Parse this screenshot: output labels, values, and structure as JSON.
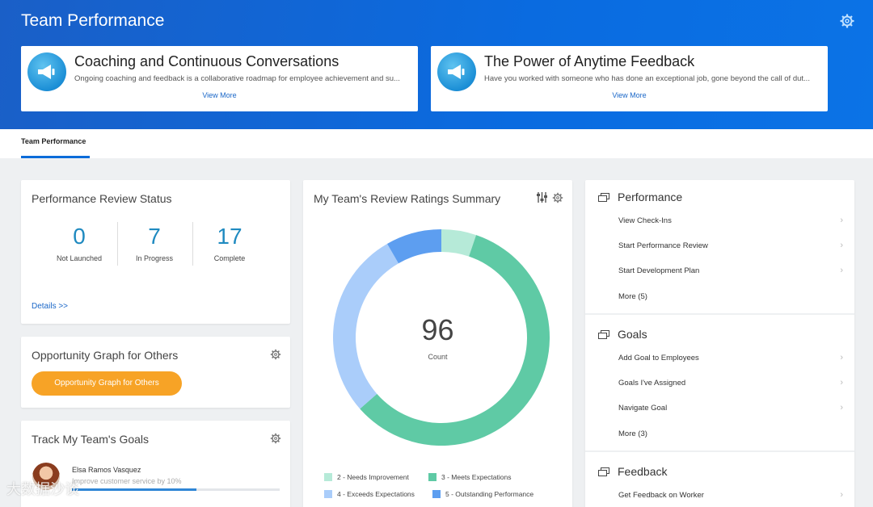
{
  "page": {
    "title": "Team Performance"
  },
  "announcements": [
    {
      "title": "Coaching and Continuous Conversations",
      "description": "Ongoing coaching and feedback is a collaborative roadmap for employee achievement and su...",
      "link": "View More"
    },
    {
      "title": "The Power of Anytime Feedback",
      "description": "Have you worked with someone who has done an exceptional job, gone beyond the call of dut...",
      "link": "View More"
    }
  ],
  "tabs": [
    {
      "label": "Team Performance",
      "active": true
    }
  ],
  "review_status": {
    "title": "Performance Review Status",
    "stats": [
      {
        "value": "0",
        "label": "Not Launched"
      },
      {
        "value": "7",
        "label": "In Progress"
      },
      {
        "value": "17",
        "label": "Complete"
      }
    ],
    "details_link": "Details >>"
  },
  "opportunity": {
    "title": "Opportunity Graph for Others",
    "button": "Opportunity Graph for Others"
  },
  "team_goals": {
    "title": "Track My Team's Goals",
    "employee": {
      "name": "Elsa Ramos Vasquez",
      "goal": "Improve customer service by 10%",
      "progress": 0.6
    }
  },
  "ratings": {
    "title": "My Team's Review Ratings Summary",
    "center_value": "96",
    "center_label": "Count"
  },
  "chart_data": {
    "type": "pie",
    "title": "My Team's Review Ratings Summary",
    "total": 96,
    "categories": [
      "2 - Needs Improvement",
      "3 - Meets Expectations",
      "4 - Exceeds Expectations",
      "5 - Outstanding Performance"
    ],
    "values": [
      5,
      56,
      27,
      8
    ],
    "colors": [
      "#b6ead8",
      "#5fcaa5",
      "#aacdfa",
      "#5d9ef0"
    ],
    "legend_position": "bottom"
  },
  "sidebar": {
    "sections": [
      {
        "title": "Performance",
        "items": [
          "View Check-Ins",
          "Start Performance Review",
          "Start Development Plan",
          "More (5)"
        ]
      },
      {
        "title": "Goals",
        "items": [
          "Add Goal to Employees",
          "Goals I've Assigned",
          "Navigate Goal",
          "More (3)"
        ]
      },
      {
        "title": "Feedback",
        "items": [
          "Get Feedback on Worker"
        ]
      }
    ]
  },
  "icons": {
    "settings": "gear-icon",
    "announcement": "megaphone-icon",
    "filter": "sliders-icon",
    "section": "window-stack-icon",
    "chevron": "chevron-right-icon"
  },
  "watermark": "大数据沙谈"
}
